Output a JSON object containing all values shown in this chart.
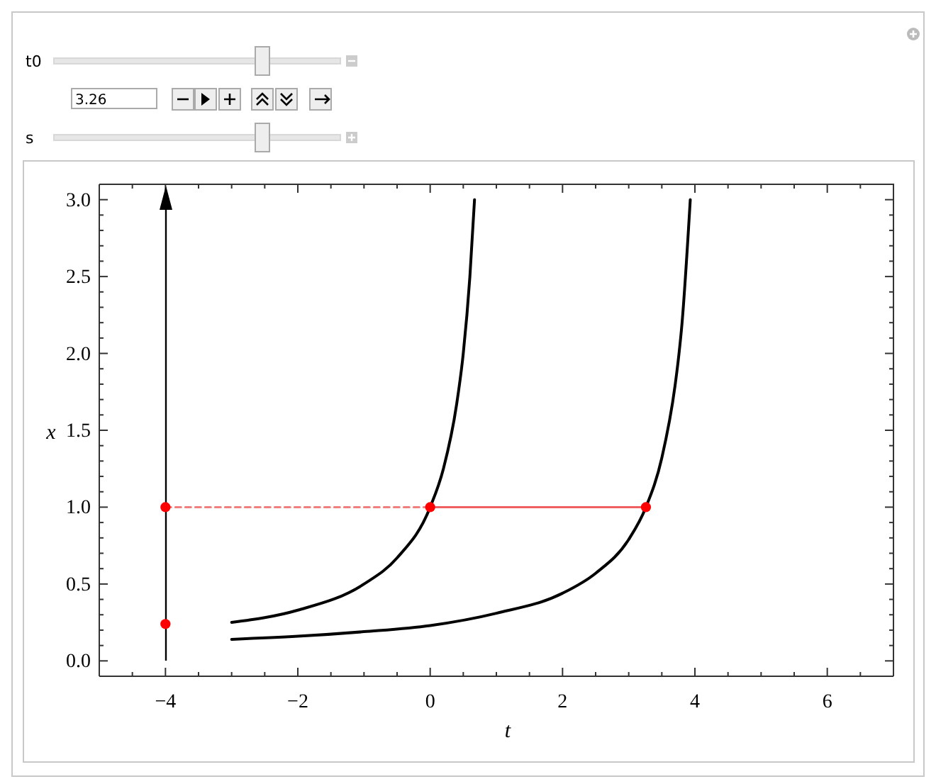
{
  "chart_data": {
    "type": "line",
    "xlabel": "t",
    "ylabel": "x",
    "xlim": [
      -5,
      7
    ],
    "ylim": [
      -0.1,
      3.1
    ],
    "xticks": [
      -4,
      -2,
      0,
      2,
      4,
      6,
      {
        "value": -4.5,
        "label": null
      },
      {
        "value": -3.5,
        "label": null
      },
      {
        "value": -3,
        "label": null
      },
      {
        "value": -2.5,
        "label": null
      },
      {
        "value": -1.5,
        "label": null
      },
      {
        "value": -1,
        "label": null
      },
      {
        "value": -0.5,
        "label": null
      },
      {
        "value": 0.5,
        "label": null
      },
      {
        "value": 1,
        "label": null
      },
      {
        "value": 1.5,
        "label": null
      },
      {
        "value": 2.5,
        "label": null
      },
      {
        "value": 3,
        "label": null
      },
      {
        "value": 3.5,
        "label": null
      },
      {
        "value": 4.5,
        "label": null
      },
      {
        "value": 5,
        "label": null
      },
      {
        "value": 5.5,
        "label": null
      },
      {
        "value": 6.5,
        "label": null
      }
    ],
    "yticks": [
      {
        "value": 0,
        "label": "0.0"
      },
      0.5,
      {
        "value": 1,
        "label": "1.0"
      },
      1.5,
      {
        "value": 2,
        "label": "2.0"
      },
      2.5,
      {
        "value": 3,
        "label": "3.0"
      },
      {
        "value": 0.1,
        "label": null
      },
      {
        "value": 0.2,
        "label": null
      },
      {
        "value": 0.3,
        "label": null
      },
      {
        "value": 0.4,
        "label": null
      },
      {
        "value": 0.6,
        "label": null
      },
      {
        "value": 0.7,
        "label": null
      },
      {
        "value": 0.8,
        "label": null
      },
      {
        "value": 0.9,
        "label": null
      },
      {
        "value": 1.1,
        "label": null
      },
      {
        "value": 1.2,
        "label": null
      },
      {
        "value": 1.3,
        "label": null
      },
      {
        "value": 1.4,
        "label": null
      },
      {
        "value": 1.6,
        "label": null
      },
      {
        "value": 1.7,
        "label": null
      },
      {
        "value": 1.8,
        "label": null
      },
      {
        "value": 1.9,
        "label": null
      },
      {
        "value": 2.1,
        "label": null
      },
      {
        "value": 2.2,
        "label": null
      },
      {
        "value": 2.3,
        "label": null
      },
      {
        "value": 2.4,
        "label": null
      },
      {
        "value": 2.6,
        "label": null
      },
      {
        "value": 2.7,
        "label": null
      },
      {
        "value": 2.8,
        "label": null
      },
      {
        "value": 2.9,
        "label": null
      }
    ],
    "series": [
      {
        "color": "#000000",
        "line_style": "solid",
        "x": [
          -3,
          -2,
          -1,
          -0.5,
          0,
          0.2,
          0.4,
          0.5,
          0.6,
          0.67
        ],
        "values": [
          0.25,
          0.33,
          0.5,
          0.67,
          1,
          1.25,
          1.67,
          2,
          2.5,
          3
        ]
      },
      {
        "color": "#000000",
        "line_style": "solid",
        "x": [
          -3,
          -2,
          -1,
          0,
          1,
          2,
          2.5,
          3,
          3.26,
          3.5,
          3.7,
          3.76,
          3.8,
          3.93
        ],
        "values": [
          0.14,
          0.16,
          0.19,
          0.23,
          0.31,
          0.44,
          0.57,
          0.79,
          1,
          1.32,
          1.79,
          2,
          2.17,
          3
        ]
      },
      {
        "color": "#f08080",
        "line_style": "dashed",
        "x": [
          -4,
          0
        ],
        "values": [
          1,
          1
        ]
      },
      {
        "color": "#f06060",
        "line_style": "solid",
        "x": [
          0,
          3.26
        ],
        "values": [
          1,
          1
        ]
      },
      {
        "type": "scatter",
        "color": "#ff0000",
        "marker": "circle",
        "x": [
          -4,
          0,
          3.26,
          -4
        ],
        "values": [
          1,
          1,
          1,
          0.24
        ]
      }
    ],
    "annotations": [
      "t0",
      "3.26",
      "s"
    ]
  }
}
